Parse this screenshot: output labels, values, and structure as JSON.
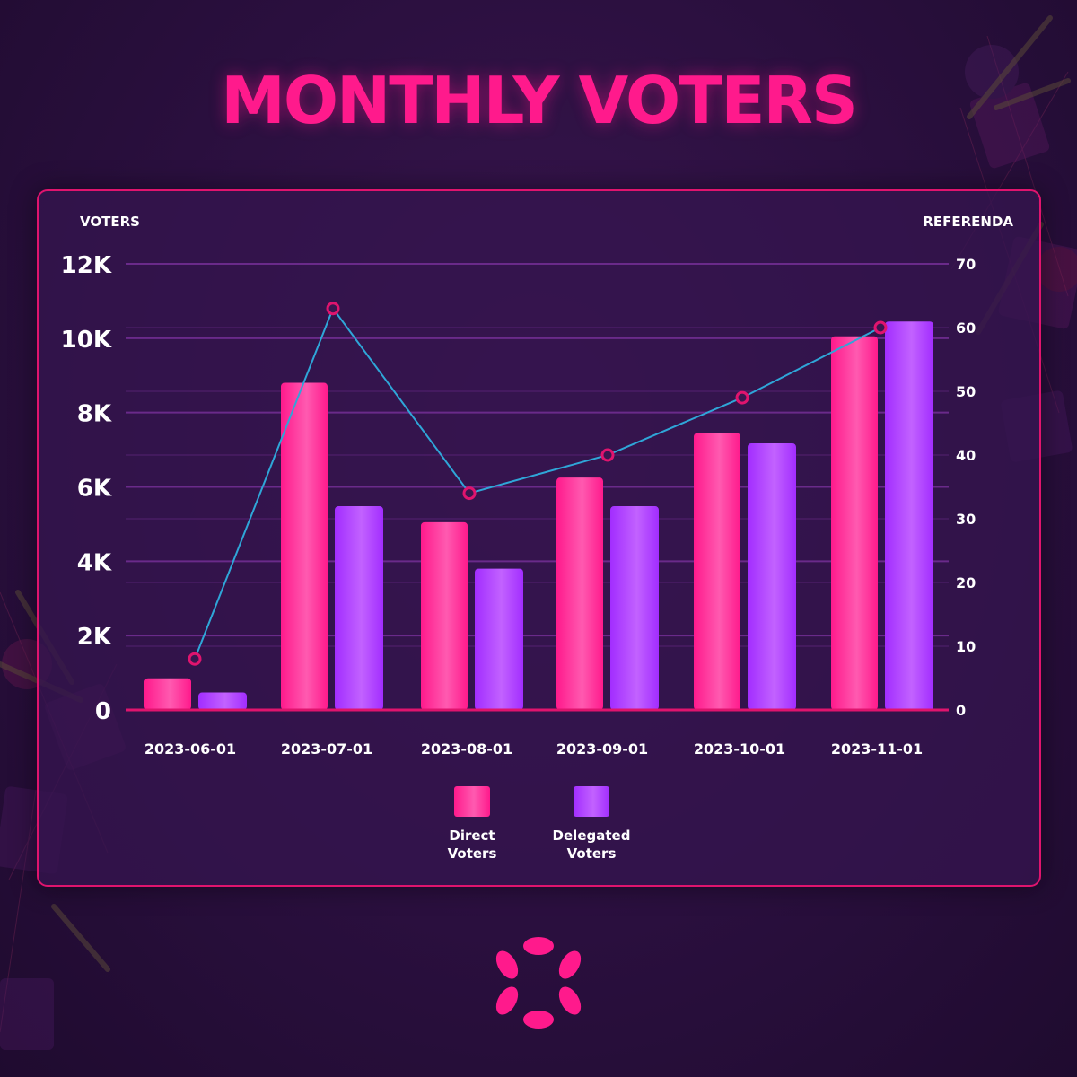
{
  "page": {
    "title": "MONTHLY VOTERS"
  },
  "colors": {
    "direct": "#ff1a8c",
    "direct_light": "#ff5ab0",
    "delegated": "#a22dff",
    "delegated_light": "#c262ff",
    "line": "#2fa6d8",
    "marker": "#e0146e",
    "grid": "#6a2a8a",
    "axis": "#e0146e"
  },
  "chart_data": {
    "type": "bar",
    "title": "MONTHLY VOTERS",
    "ylabel": "VOTERS",
    "y2label": "REFERENDA",
    "categories": [
      "2023-06-01",
      "2023-07-01",
      "2023-08-01",
      "2023-09-01",
      "2023-10-01",
      "2023-11-01"
    ],
    "ylim": [
      0,
      12000
    ],
    "y2lim": [
      0,
      70
    ],
    "y_ticks": [
      0,
      2000,
      4000,
      6000,
      8000,
      10000,
      12000
    ],
    "y_tick_labels": [
      "0",
      "2K",
      "4K",
      "6K",
      "8K",
      "10K",
      "12K"
    ],
    "y2_ticks": [
      0,
      10,
      20,
      30,
      40,
      50,
      60,
      70
    ],
    "y2_tick_labels": [
      "0",
      "10",
      "20",
      "30",
      "40",
      "50",
      "60",
      "70"
    ],
    "grid": true,
    "legend_position": "bottom-center",
    "series": [
      {
        "name": "Direct Voters",
        "legend_lines": [
          "Direct",
          "Voters"
        ],
        "type": "bar",
        "axis": "left",
        "values": [
          850,
          8800,
          5050,
          6250,
          7450,
          10050
        ]
      },
      {
        "name": "Delegated Voters",
        "legend_lines": [
          "Delegated",
          "Voters"
        ],
        "type": "bar",
        "axis": "left",
        "values": [
          470,
          5480,
          3800,
          5480,
          7170,
          10450
        ]
      },
      {
        "name": "Referenda",
        "type": "line",
        "axis": "right",
        "values": [
          8,
          63,
          34,
          40,
          49,
          60
        ]
      }
    ]
  }
}
